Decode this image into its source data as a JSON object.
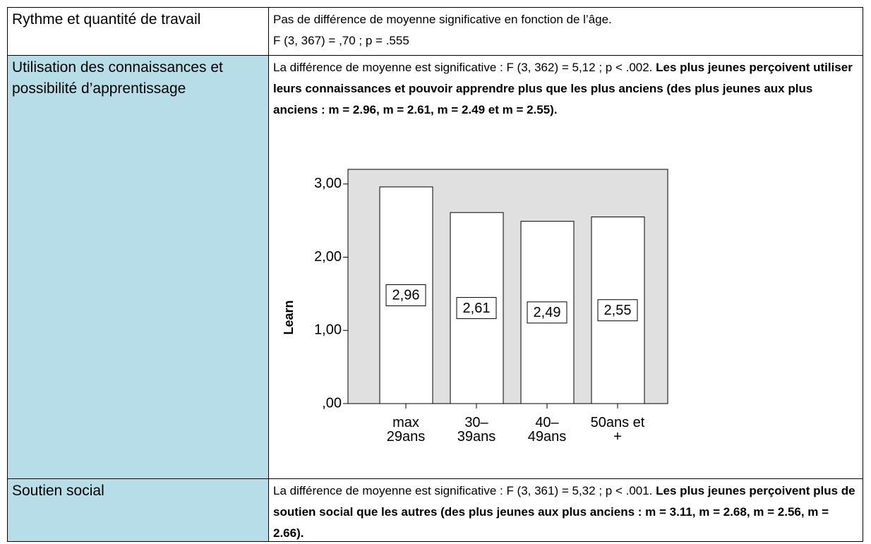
{
  "table": {
    "rows": [
      {
        "label": "Rythme et quantité de travail",
        "text": "Pas de différence de moyenne significative en fonction de l’âge.",
        "text2": "F (3, 367) = ,70 ; p = .555"
      },
      {
        "label": "Utilisation des connaissances et possibilité d’apprentissage",
        "text": "La différence de moyenne est significative : F (3, 362) = 5,12 ; p < .002. ",
        "emphasis": "Les plus jeunes perçoivent utiliser leurs connaissances et pouvoir apprendre plus que les plus anciens (des plus jeunes aux plus anciens : m = 2.96, m = 2.61, m = 2.49 et m = 2.55)."
      },
      {
        "label": "Soutien social",
        "text": "La différence de moyenne est significative : F (3, 361) = 5,32 ; p < .001. ",
        "emphasis": "Les plus jeunes perçoivent plus de soutien social que les autres (des plus jeunes aux plus anciens : m = 3.11, m = 2.68, m = 2.56, m = 2.66)."
      }
    ]
  },
  "chart_data": {
    "type": "bar",
    "y_label": "Learn",
    "categories": [
      "max 29ans",
      "30– 39ans",
      "40– 49ans",
      "50ans et +"
    ],
    "values": [
      2.96,
      2.61,
      2.49,
      2.55
    ],
    "value_labels": [
      "2,96",
      "2,61",
      "2,49",
      "2,55"
    ],
    "color": "#ffffff",
    "ylim": [
      0,
      3.2
    ],
    "yticks": [
      {
        "value": 0,
        "label": ",00"
      },
      {
        "value": 1,
        "label": "1,00"
      },
      {
        "value": 2,
        "label": "2,00"
      },
      {
        "value": 3,
        "label": "3,00"
      }
    ]
  }
}
